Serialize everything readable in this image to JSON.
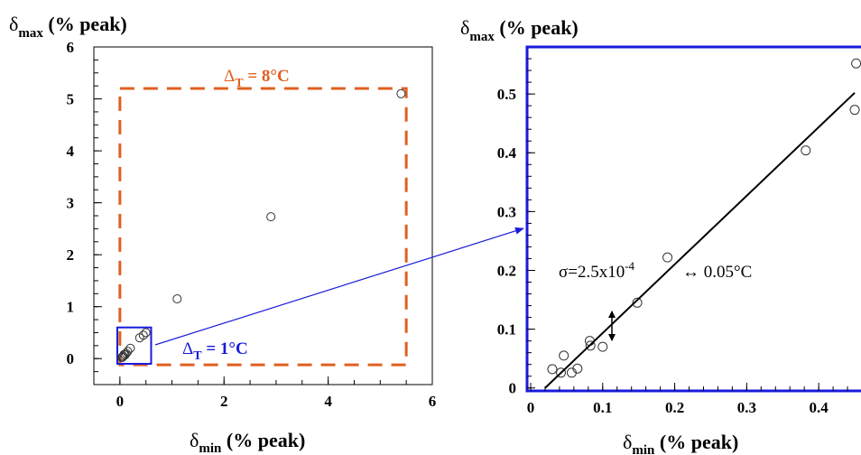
{
  "chart_data": [
    {
      "type": "scatter",
      "ylabel_main": "δ",
      "ylabel_sub": "max",
      "ylabel_rest": " (% peak)",
      "xlabel_main": "δ",
      "xlabel_sub": "min",
      "xlabel_rest": " (% peak)",
      "xlim": [
        -0.5,
        6
      ],
      "ylim": [
        -0.5,
        6
      ],
      "xticks": [
        "0",
        "2",
        "4",
        "6"
      ],
      "yticks": [
        "0",
        "1",
        "2",
        "3",
        "4",
        "5",
        "6"
      ],
      "points": [
        {
          "x": 5.4,
          "y": 5.1
        },
        {
          "x": 2.9,
          "y": 2.73
        },
        {
          "x": 1.1,
          "y": 1.15
        },
        {
          "x": 0.5,
          "y": 0.5
        },
        {
          "x": 0.45,
          "y": 0.45
        },
        {
          "x": 0.38,
          "y": 0.4
        },
        {
          "x": 0.2,
          "y": 0.2
        },
        {
          "x": 0.15,
          "y": 0.14
        },
        {
          "x": 0.1,
          "y": 0.07
        },
        {
          "x": 0.08,
          "y": 0.08
        },
        {
          "x": 0.06,
          "y": 0.05
        },
        {
          "x": 0.05,
          "y": 0.03
        },
        {
          "x": 0.04,
          "y": 0.02
        },
        {
          "x": 0.12,
          "y": 0.1
        }
      ],
      "annotations": [
        {
          "label_main": "Δ",
          "label_sub": "T",
          "label_rest": " = 8°C",
          "color": "#e06020",
          "box": [
            0,
            5.5,
            -0.12,
            5.2
          ]
        },
        {
          "label_main": "Δ",
          "label_sub": "T",
          "label_rest": " = 1°C",
          "color": "#1a1adb",
          "box": [
            -0.05,
            0.6,
            -0.1,
            0.6
          ]
        }
      ]
    },
    {
      "type": "scatter",
      "ylabel_main": "δ",
      "ylabel_sub": "max",
      "ylabel_rest": " (% peak)",
      "xlabel_main": "δ",
      "xlabel_sub": "min",
      "xlabel_rest": " (% peak)",
      "xlim": [
        -0.005,
        0.465
      ],
      "ylim": [
        -0.005,
        0.58
      ],
      "xticks": [
        "0",
        "0.1",
        "0.2",
        "0.3",
        "0.4"
      ],
      "yticks": [
        "0",
        "0.1",
        "0.2",
        "0.3",
        "0.4",
        "0.5"
      ],
      "points": [
        {
          "x": 0.452,
          "y": 0.552
        },
        {
          "x": 0.45,
          "y": 0.473
        },
        {
          "x": 0.382,
          "y": 0.404
        },
        {
          "x": 0.19,
          "y": 0.222
        },
        {
          "x": 0.148,
          "y": 0.145
        },
        {
          "x": 0.1,
          "y": 0.07
        },
        {
          "x": 0.082,
          "y": 0.08
        },
        {
          "x": 0.083,
          "y": 0.072
        },
        {
          "x": 0.065,
          "y": 0.033
        },
        {
          "x": 0.057,
          "y": 0.026
        },
        {
          "x": 0.046,
          "y": 0.055
        },
        {
          "x": 0.042,
          "y": 0.026
        },
        {
          "x": 0.03,
          "y": 0.032
        }
      ],
      "fit_line": {
        "x": [
          0.02,
          0.45
        ],
        "y": [
          0.0,
          0.502
        ]
      },
      "annotation_sigma": "σ=2.5x10",
      "annotation_sigma_exp": "-4",
      "annotation_arrow": "↔ 0.05°C",
      "frame_color": "#1a1adb"
    }
  ]
}
